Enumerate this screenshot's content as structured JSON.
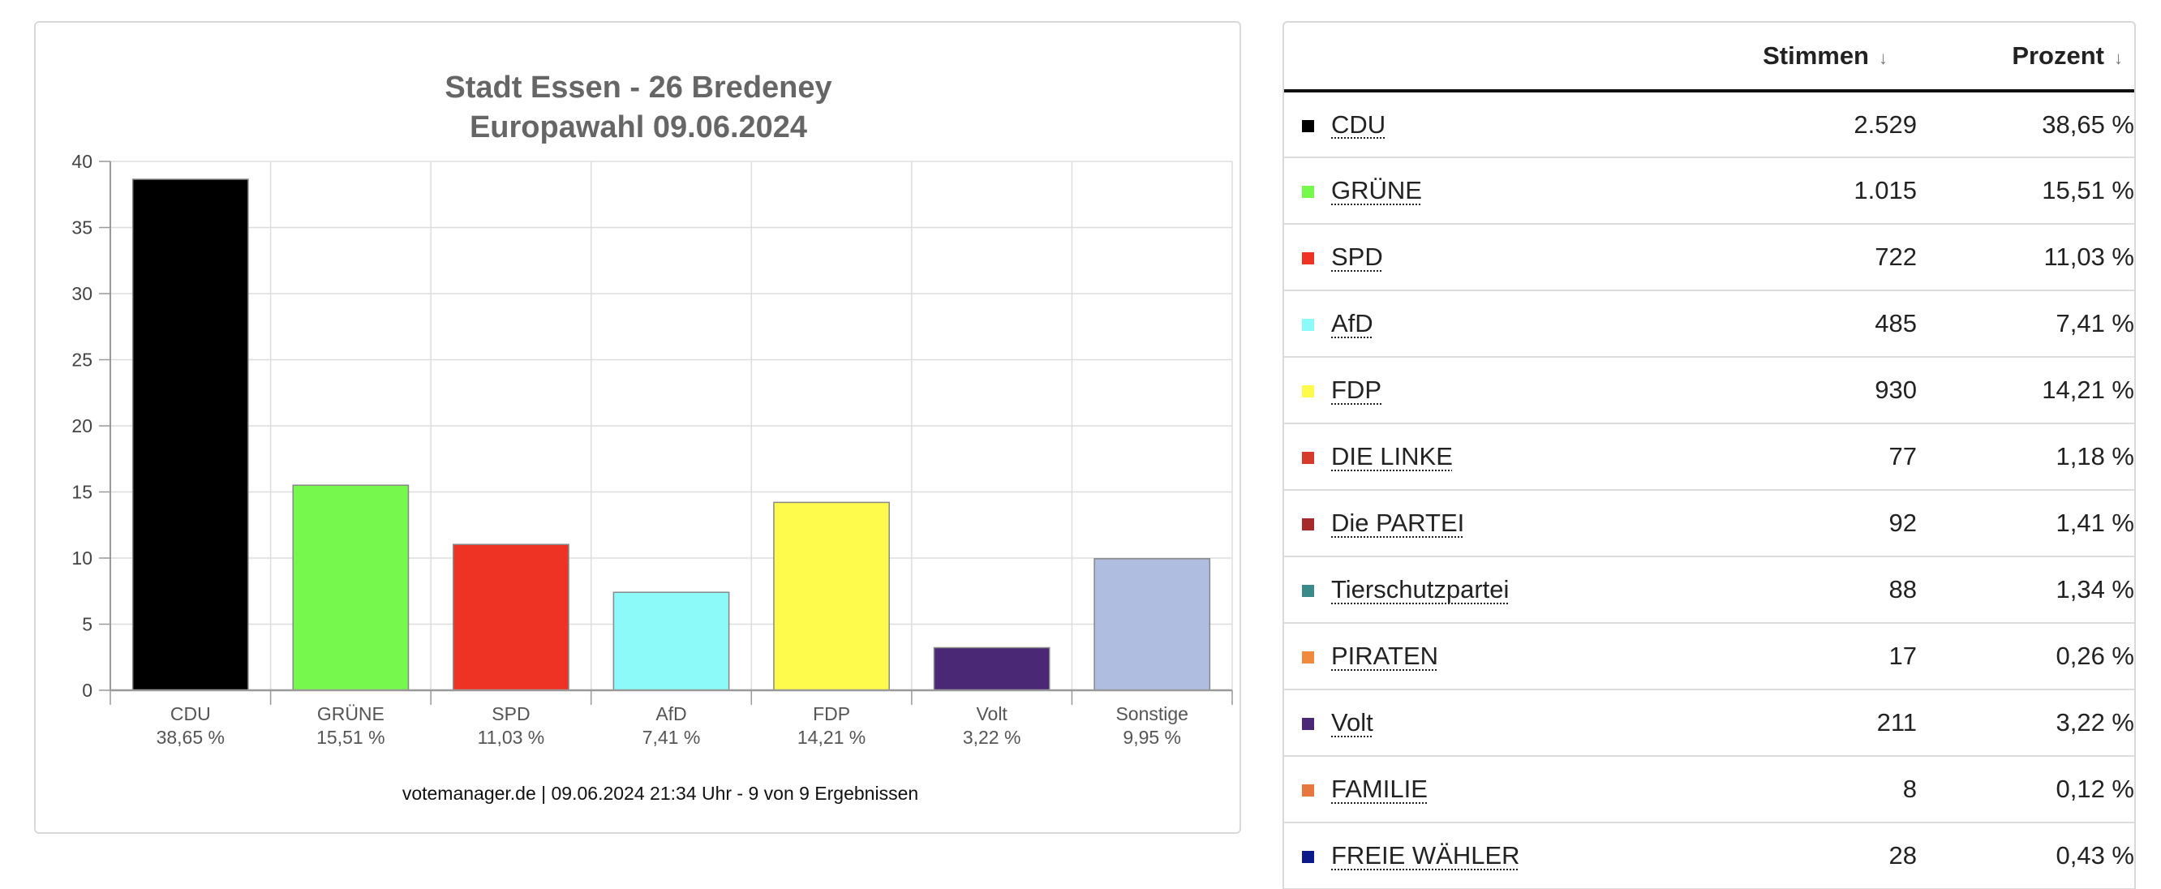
{
  "chart_data": {
    "type": "bar",
    "title": "Stadt Essen - 26 Bredeney",
    "subtitle": "Europawahl 09.06.2024",
    "categories": [
      "CDU",
      "GRÜNE",
      "SPD",
      "AfD",
      "FDP",
      "Volt",
      "Sonstige"
    ],
    "category_labels": [
      "38,65 %",
      "15,51 %",
      "11,03 %",
      "7,41 %",
      "14,21 %",
      "3,22 %",
      "9,95 %"
    ],
    "values": [
      38.65,
      15.51,
      11.03,
      7.41,
      14.21,
      3.22,
      9.95
    ],
    "colors": [
      "#000000",
      "#77f84c",
      "#ee3223",
      "#8cfaf8",
      "#fefb4d",
      "#4a2876",
      "#afbde0"
    ],
    "ylim": [
      0,
      40
    ],
    "yticks": [
      0,
      5,
      10,
      15,
      20,
      25,
      30,
      35,
      40
    ],
    "grid": true,
    "xlabel": "",
    "ylabel": "",
    "footer": "votemanager.de | 09.06.2024 21:34 Uhr - 9 von 9 Ergebnissen"
  },
  "table": {
    "headers": {
      "party": "",
      "stimmen": "Stimmen",
      "prozent": "Prozent",
      "sort_arrow": "↓"
    },
    "rows": [
      {
        "color": "#000000",
        "party": "CDU",
        "stimmen": "2.529",
        "prozent": "38,65 %"
      },
      {
        "color": "#77f84c",
        "party": "GRÜNE",
        "stimmen": "1.015",
        "prozent": "15,51 %"
      },
      {
        "color": "#ee3223",
        "party": "SPD",
        "stimmen": "722",
        "prozent": "11,03 %"
      },
      {
        "color": "#8cfaf8",
        "party": "AfD",
        "stimmen": "485",
        "prozent": "7,41 %"
      },
      {
        "color": "#fefb4d",
        "party": "FDP",
        "stimmen": "930",
        "prozent": "14,21 %"
      },
      {
        "color": "#d63a2a",
        "party": "DIE LINKE",
        "stimmen": "77",
        "prozent": "1,18 %"
      },
      {
        "color": "#a52a2a",
        "party": "Die PARTEI",
        "stimmen": "92",
        "prozent": "1,41 %"
      },
      {
        "color": "#3a8a8a",
        "party": "Tierschutzpartei",
        "stimmen": "88",
        "prozent": "1,34 %"
      },
      {
        "color": "#f08a3c",
        "party": "PIRATEN",
        "stimmen": "17",
        "prozent": "0,26 %"
      },
      {
        "color": "#4a2876",
        "party": "Volt",
        "stimmen": "211",
        "prozent": "3,22 %"
      },
      {
        "color": "#e8773f",
        "party": "FAMILIE",
        "stimmen": "8",
        "prozent": "0,12 %"
      },
      {
        "color": "#0a1a8a",
        "party": "FREIE WÄHLER",
        "stimmen": "28",
        "prozent": "0,43 %"
      }
    ]
  }
}
